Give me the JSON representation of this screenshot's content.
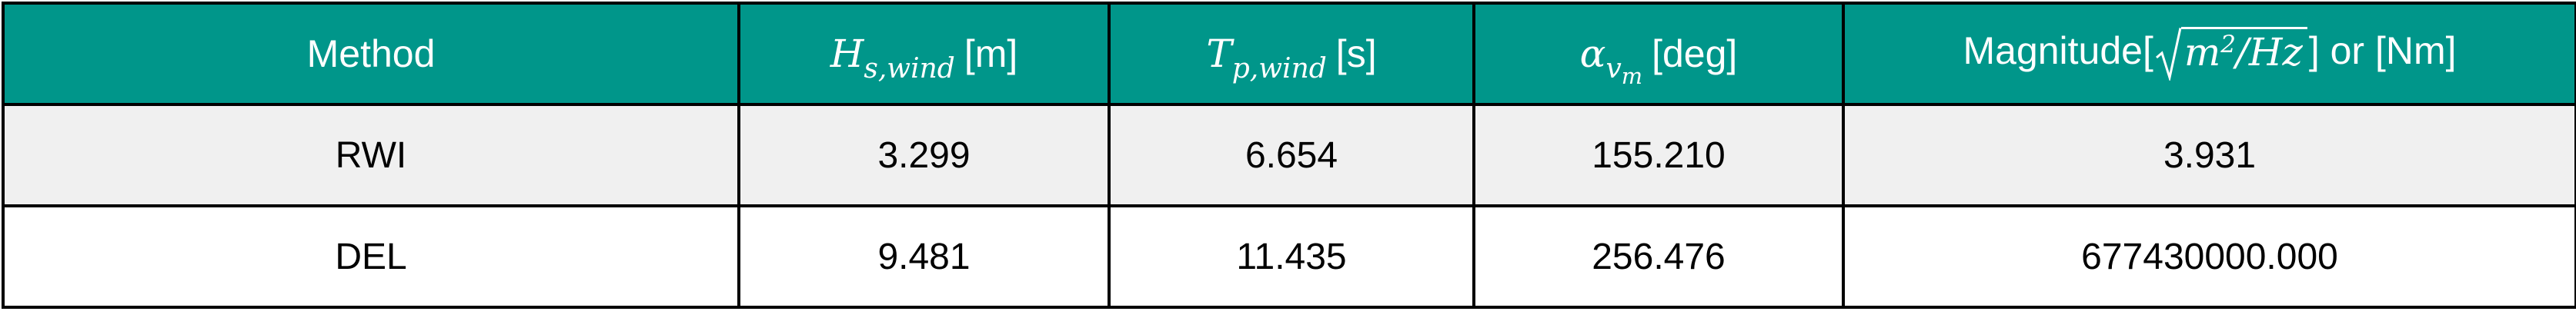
{
  "table": {
    "headers": {
      "method": "Method",
      "hs": {
        "symbol": "H",
        "subscript": "s,wind",
        "unit": "[m]"
      },
      "tp": {
        "symbol": "T",
        "subscript": "p,wind",
        "unit": "[s]"
      },
      "alpha": {
        "symbol": "α",
        "subscript": "v",
        "subsubscript": "m",
        "unit": "[deg]"
      },
      "magnitude": {
        "prefix": "Magnitude[",
        "radicand_base": "m",
        "radicand_exp": "2",
        "radicand_rest": "/Hz",
        "suffix": "] or [Nm]"
      }
    },
    "rows": [
      {
        "method": "RWI",
        "hs": "3.299",
        "tp": "6.654",
        "alpha": "155.210",
        "magnitude": "3.931"
      },
      {
        "method": "DEL",
        "hs": "9.481",
        "tp": "11.435",
        "alpha": "256.476",
        "magnitude": "677430000.000"
      }
    ]
  },
  "colors": {
    "header_background": "#00968a",
    "header_text": "#ffffff",
    "shaded_row": "#f0f0f0",
    "plain_row": "#ffffff",
    "border": "#000000"
  }
}
